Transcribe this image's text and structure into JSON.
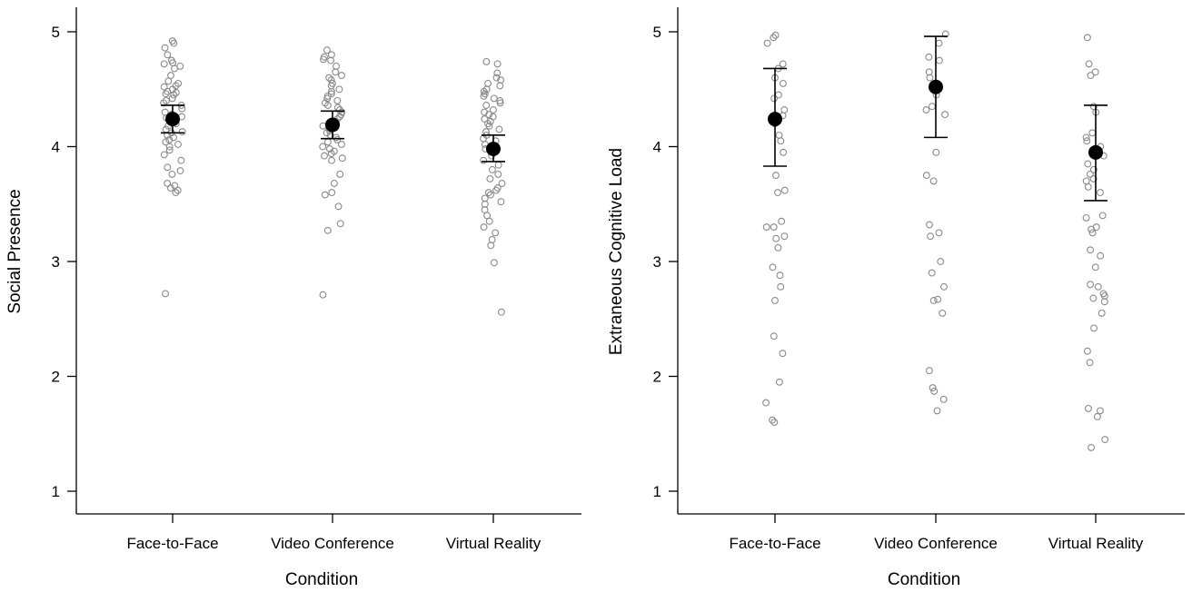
{
  "chart_data": [
    {
      "type": "scatter",
      "title": "",
      "xlabel": "Condition",
      "ylabel": "Social Presence",
      "categories": [
        "Face-to-Face",
        "Video Conference",
        "Virtual Reality"
      ],
      "ylim": [
        0.8,
        5.2
      ],
      "yticks": [
        "1",
        "2",
        "3",
        "4",
        "5"
      ],
      "grid": false,
      "means": [
        4.24,
        4.19,
        3.98
      ],
      "ci_low": [
        4.12,
        4.07,
        3.87
      ],
      "ci_high": [
        4.36,
        4.31,
        4.1
      ],
      "points": [
        [
          4.92,
          4.9,
          4.86,
          4.8,
          4.75,
          4.73,
          4.72,
          4.7,
          4.68,
          4.62,
          4.57,
          4.55,
          4.53,
          4.52,
          4.5,
          4.48,
          4.47,
          4.46,
          4.45,
          4.42,
          4.4,
          4.38,
          4.36,
          4.33,
          4.3,
          4.28,
          4.26,
          4.25,
          4.24,
          4.22,
          4.2,
          4.18,
          4.15,
          4.13,
          4.12,
          4.1,
          4.08,
          4.06,
          4.04,
          4.02,
          4.0,
          3.97,
          3.93,
          3.88,
          3.82,
          3.79,
          3.76,
          3.68,
          3.66,
          3.64,
          3.62,
          3.6,
          2.72
        ],
        [
          4.84,
          4.8,
          4.78,
          4.76,
          4.75,
          4.7,
          4.65,
          4.62,
          4.6,
          4.58,
          4.55,
          4.53,
          4.5,
          4.48,
          4.46,
          4.44,
          4.42,
          4.4,
          4.38,
          4.36,
          4.34,
          4.32,
          4.3,
          4.28,
          4.26,
          4.24,
          4.22,
          4.2,
          4.18,
          4.16,
          4.14,
          4.12,
          4.1,
          4.08,
          4.06,
          4.04,
          4.02,
          4.0,
          3.98,
          3.96,
          3.94,
          3.92,
          3.9,
          3.88,
          3.76,
          3.68,
          3.6,
          3.58,
          3.48,
          3.33,
          3.27,
          2.71
        ],
        [
          4.74,
          4.72,
          4.64,
          4.6,
          4.58,
          4.55,
          4.53,
          4.5,
          4.48,
          4.46,
          4.44,
          4.42,
          4.4,
          4.38,
          4.36,
          4.32,
          4.3,
          4.28,
          4.26,
          4.24,
          4.22,
          4.2,
          4.18,
          4.15,
          4.13,
          4.1,
          4.07,
          4.05,
          4.02,
          4.0,
          3.98,
          3.95,
          3.92,
          3.88,
          3.84,
          3.8,
          3.76,
          3.72,
          3.68,
          3.64,
          3.62,
          3.6,
          3.58,
          3.55,
          3.52,
          3.5,
          3.45,
          3.4,
          3.35,
          3.3,
          3.25,
          3.19,
          3.14,
          2.99,
          2.56
        ]
      ]
    },
    {
      "type": "scatter",
      "title": "",
      "xlabel": "Condition",
      "ylabel": "Extraneous Cognitive Load",
      "categories": [
        "Face-to-Face",
        "Video Conference",
        "Virtual Reality"
      ],
      "ylim": [
        0.8,
        5.2
      ],
      "yticks": [
        "1",
        "2",
        "3",
        "4",
        "5"
      ],
      "grid": false,
      "means": [
        4.24,
        4.52,
        3.95
      ],
      "ci_low": [
        3.83,
        4.08,
        3.53
      ],
      "ci_high": [
        4.68,
        4.96,
        4.36
      ],
      "points": [
        [
          4.97,
          4.95,
          4.9,
          4.72,
          4.68,
          4.6,
          4.55,
          4.45,
          4.42,
          4.32,
          4.27,
          4.22,
          4.2,
          4.1,
          4.05,
          3.95,
          3.75,
          3.62,
          3.6,
          3.35,
          3.3,
          3.3,
          3.22,
          3.2,
          3.12,
          2.95,
          2.88,
          2.78,
          2.66,
          2.35,
          2.2,
          1.95,
          1.77,
          1.62,
          1.6
        ],
        [
          4.98,
          4.9,
          4.78,
          4.75,
          4.65,
          4.6,
          4.45,
          4.35,
          4.32,
          4.28,
          3.95,
          3.75,
          3.7,
          3.32,
          3.25,
          3.22,
          3.0,
          2.9,
          2.78,
          2.67,
          2.66,
          2.55,
          2.05,
          1.9,
          1.87,
          1.8,
          1.7
        ],
        [
          4.95,
          4.72,
          4.65,
          4.62,
          4.35,
          4.3,
          4.12,
          4.08,
          4.05,
          4.0,
          3.98,
          3.95,
          3.92,
          3.85,
          3.8,
          3.76,
          3.72,
          3.7,
          3.65,
          3.6,
          3.4,
          3.38,
          3.3,
          3.28,
          3.25,
          3.1,
          3.05,
          2.95,
          2.8,
          2.78,
          2.72,
          2.7,
          2.68,
          2.65,
          2.55,
          2.42,
          2.22,
          2.12,
          1.72,
          1.7,
          1.65,
          1.45,
          1.38
        ]
      ]
    }
  ]
}
